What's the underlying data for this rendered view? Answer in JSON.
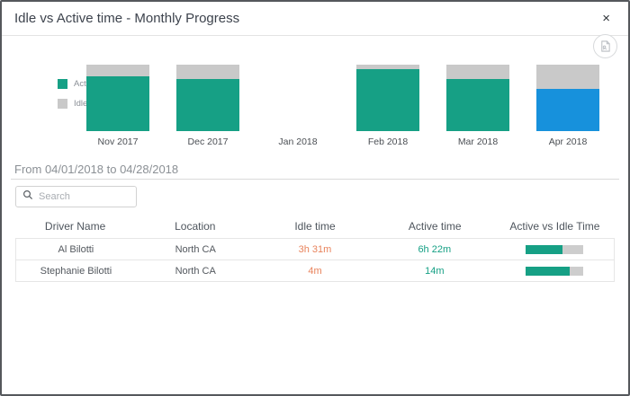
{
  "modal": {
    "title": "Idle vs Active time - Monthly Progress",
    "close_label": "×"
  },
  "toolbar": {
    "export_icon": "export-report-icon"
  },
  "chart_data": {
    "type": "bar",
    "stacked": true,
    "title": "Idle vs Active time - Monthly Progress",
    "categories": [
      "Nov 2017",
      "Dec 2017",
      "Jan 2018",
      "Feb 2018",
      "Mar 2018",
      "Apr 2018"
    ],
    "series": [
      {
        "name": "Active Time",
        "color": "#16a085",
        "values": [
          82,
          78,
          0,
          93,
          79,
          63
        ]
      },
      {
        "name": "Idle Time",
        "color": "#c9c9c9",
        "values": [
          18,
          22,
          0,
          7,
          21,
          37
        ]
      }
    ],
    "highlight": {
      "category": "Apr 2018",
      "active_color": "#1791dc"
    },
    "legend_position": "left",
    "xlabel": "",
    "ylabel": "",
    "ylim": [
      0,
      100
    ],
    "grid": false
  },
  "filter": {
    "range_label": "From 04/01/2018 to 04/28/2018"
  },
  "search": {
    "placeholder": "Search"
  },
  "table": {
    "columns": [
      "Driver Name",
      "Location",
      "Idle time",
      "Active time",
      "Active vs Idle Time"
    ],
    "rows": [
      {
        "driver": "Al Bilotti",
        "location": "North CA",
        "idle": "3h 31m",
        "active": "6h 22m",
        "active_pct": 64
      },
      {
        "driver": "Stephanie Bilotti",
        "location": "North CA",
        "idle": "4m",
        "active": "14m",
        "active_pct": 78
      }
    ]
  },
  "colors": {
    "active": "#16a085",
    "idle": "#c9c9c9",
    "highlight_blue": "#1791dc",
    "idle_text": "#e8835c",
    "active_text": "#16a085",
    "progress_track": "#cdcdcd"
  }
}
